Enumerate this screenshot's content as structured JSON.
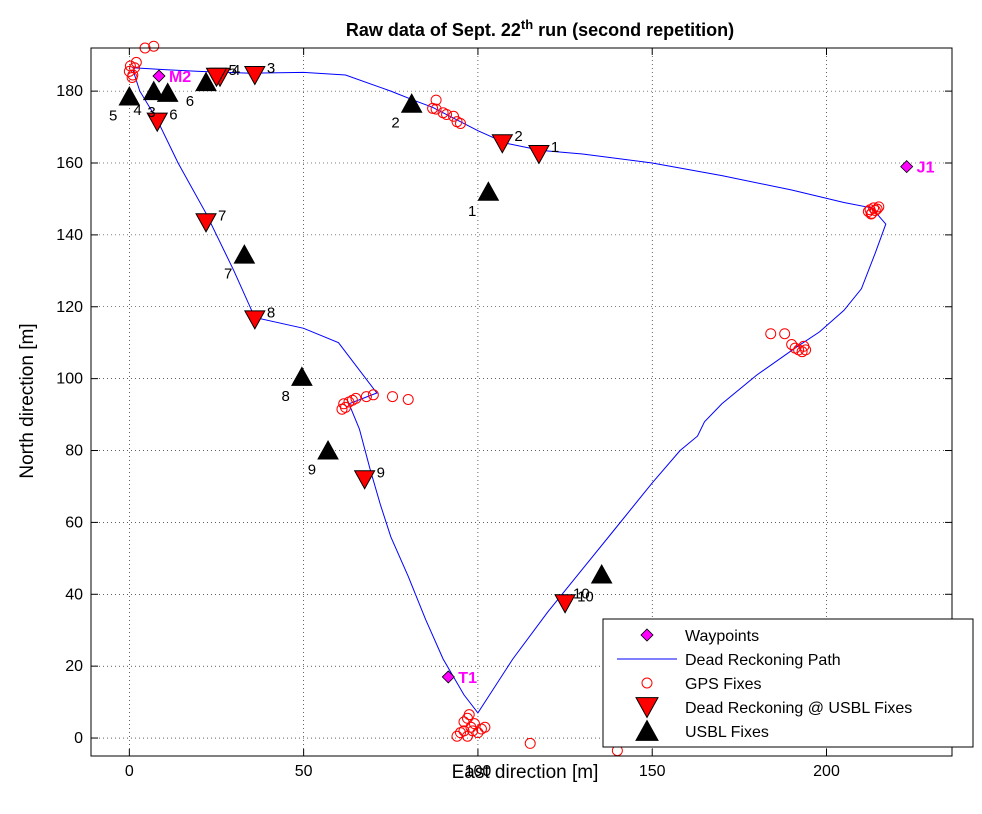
{
  "chart_data": {
    "type": "scatter",
    "title": "Raw data of Sept. 22",
    "title_sup": "th",
    "title_suffix": " run (second repetition)",
    "xlabel": "East direction [m]",
    "ylabel": "North direction [m]",
    "xlim": [
      -11,
      236
    ],
    "ylim": [
      -5,
      192
    ],
    "xticks": [
      0,
      50,
      100,
      150,
      200
    ],
    "yticks": [
      0,
      20,
      40,
      60,
      80,
      100,
      120,
      140,
      160,
      180
    ],
    "grid": true,
    "legend_position": "bottom-right",
    "legend": [
      "Waypoints",
      "Dead Reckoning Path",
      "GPS Fixes",
      "Dead Reckoning @ USBL Fixes",
      "USBL Fixes"
    ],
    "colors": {
      "waypoint": "#ff00ff",
      "path": "#0000ff",
      "gps": "#ff0000",
      "dr_usbl": "#ff0000",
      "usbl": "#000000"
    },
    "series": {
      "waypoints": [
        {
          "label": "M2",
          "x": 8.5,
          "y": 184.2
        },
        {
          "label": "J1",
          "x": 223,
          "y": 159
        },
        {
          "label": "T1",
          "x": 91.5,
          "y": 17
        }
      ],
      "dead_reckoning_path": [
        [
          1,
          186.5
        ],
        [
          10,
          186
        ],
        [
          20,
          185.5
        ],
        [
          35,
          185
        ],
        [
          50,
          185.2
        ],
        [
          62,
          184.5
        ],
        [
          75,
          180
        ],
        [
          82,
          177.3
        ],
        [
          87,
          175.5
        ],
        [
          94,
          172
        ],
        [
          100,
          169
        ],
        [
          108,
          165.5
        ],
        [
          118,
          163.5
        ],
        [
          130,
          162.5
        ],
        [
          150,
          160
        ],
        [
          170,
          156.5
        ],
        [
          190,
          152.5
        ],
        [
          205,
          149
        ],
        [
          213,
          147.5
        ],
        [
          217,
          143
        ],
        [
          214,
          135
        ],
        [
          210,
          125
        ],
        [
          205,
          119
        ],
        [
          198,
          113
        ],
        [
          191,
          108.5
        ],
        [
          180,
          101
        ],
        [
          170,
          93
        ],
        [
          165,
          88
        ],
        [
          163,
          84
        ],
        [
          158,
          80
        ],
        [
          150,
          71
        ],
        [
          140,
          59
        ],
        [
          130,
          47
        ],
        [
          120,
          35
        ],
        [
          110,
          22
        ],
        [
          100,
          7
        ],
        [
          96,
          12
        ],
        [
          90,
          22
        ],
        [
          85,
          33
        ],
        [
          80,
          45
        ],
        [
          75,
          56
        ],
        [
          72,
          65
        ],
        [
          69,
          75
        ],
        [
          66,
          86
        ],
        [
          63,
          93
        ],
        [
          71,
          96
        ],
        [
          60,
          110
        ],
        [
          50,
          114
        ],
        [
          36,
          117
        ],
        [
          30,
          130
        ],
        [
          22,
          146
        ],
        [
          14,
          160
        ],
        [
          8,
          172
        ],
        [
          3,
          180
        ],
        [
          1,
          186
        ]
      ],
      "gps_fixes": [
        [
          0,
          185.5
        ],
        [
          0.3,
          187
        ],
        [
          1,
          184.5
        ],
        [
          2,
          188
        ],
        [
          4.5,
          192
        ],
        [
          7,
          192.5
        ],
        [
          1.5,
          186.5
        ],
        [
          0.8,
          183.8
        ],
        [
          87,
          175.2
        ],
        [
          88,
          177.5
        ],
        [
          88,
          175
        ],
        [
          90,
          174
        ],
        [
          91,
          173.5
        ],
        [
          93,
          173
        ],
        [
          94,
          171.5
        ],
        [
          95,
          171
        ],
        [
          212,
          146.5
        ],
        [
          212.5,
          147
        ],
        [
          213,
          146
        ],
        [
          213.5,
          147.5
        ],
        [
          214,
          146.8
        ],
        [
          214.5,
          147.2
        ],
        [
          215,
          147.8
        ],
        [
          212.8,
          145.8
        ],
        [
          184,
          112.5
        ],
        [
          188,
          112.5
        ],
        [
          190,
          109.5
        ],
        [
          191,
          108.5
        ],
        [
          192,
          108
        ],
        [
          193,
          107.5
        ],
        [
          194,
          108
        ],
        [
          193.5,
          109
        ],
        [
          61,
          91.5
        ],
        [
          62,
          92
        ],
        [
          61.5,
          93
        ],
        [
          63,
          93.5
        ],
        [
          64,
          94
        ],
        [
          65,
          94.5
        ],
        [
          68,
          95
        ],
        [
          70,
          95.5
        ],
        [
          75.5,
          95
        ],
        [
          80,
          94.2
        ],
        [
          96,
          4.5
        ],
        [
          97,
          5.5
        ],
        [
          97.5,
          6.5
        ],
        [
          98,
          3
        ],
        [
          96,
          2
        ],
        [
          97,
          0.5
        ],
        [
          98.5,
          2
        ],
        [
          99,
          4
        ],
        [
          100,
          1.5
        ],
        [
          101,
          2.5
        ],
        [
          102,
          3
        ],
        [
          94,
          0.5
        ],
        [
          95,
          1.5
        ],
        [
          115,
          -1.5
        ],
        [
          140,
          -3.5
        ]
      ],
      "dr_at_usbl_fixes": [
        {
          "label": "1",
          "x": 117.5,
          "y": 162.5
        },
        {
          "label": "2",
          "x": 107,
          "y": 165.5
        },
        {
          "label": "3",
          "x": 36,
          "y": 184.5
        },
        {
          "label": "4",
          "x": 26,
          "y": 184
        },
        {
          "label": "5",
          "x": 25,
          "y": 184
        },
        {
          "label": "6",
          "x": 8,
          "y": 171.5
        },
        {
          "label": "7",
          "x": 22,
          "y": 143.5
        },
        {
          "label": "8",
          "x": 36,
          "y": 116.5
        },
        {
          "label": "9",
          "x": 67.5,
          "y": 72
        },
        {
          "label": "10",
          "x": 125,
          "y": 37.5
        }
      ],
      "usbl_fixes": [
        {
          "label": "1",
          "x": 103,
          "y": 152
        },
        {
          "label": "2",
          "x": 81,
          "y": 176.5
        },
        {
          "label": "3",
          "x": 11,
          "y": 179.5
        },
        {
          "label": "4",
          "x": 7,
          "y": 180
        },
        {
          "label": "5",
          "x": 0,
          "y": 178.5
        },
        {
          "label": "6",
          "x": 22,
          "y": 182.5
        },
        {
          "label": "7",
          "x": 33,
          "y": 134.5
        },
        {
          "label": "8",
          "x": 49.5,
          "y": 100.5
        },
        {
          "label": "9",
          "x": 57,
          "y": 80
        },
        {
          "label": "10",
          "x": 135.5,
          "y": 45.5
        }
      ]
    }
  }
}
